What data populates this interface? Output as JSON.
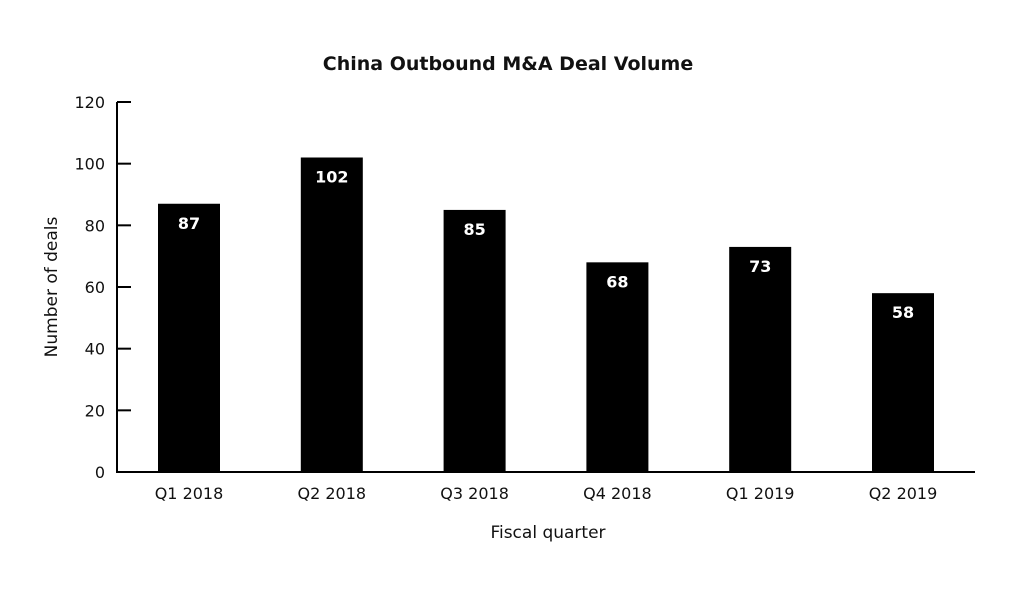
{
  "chart_data": {
    "type": "bar",
    "title": "China Outbound M&A Deal Volume",
    "xlabel": "Fiscal quarter",
    "ylabel": "Number of deals",
    "categories": [
      "Q1 2018",
      "Q2 2018",
      "Q3 2018",
      "Q4 2018",
      "Q1 2019",
      "Q2 2019"
    ],
    "values": [
      87,
      102,
      85,
      68,
      73,
      58
    ],
    "data_labels": [
      "87",
      "102",
      "85",
      "68",
      "73",
      "58"
    ],
    "ylim": [
      0,
      120
    ],
    "yticks": [
      0,
      20,
      40,
      60,
      80,
      100,
      120
    ],
    "grid": false,
    "legend": "none",
    "bar_color": "#000000",
    "label_color": "#ffffff"
  }
}
